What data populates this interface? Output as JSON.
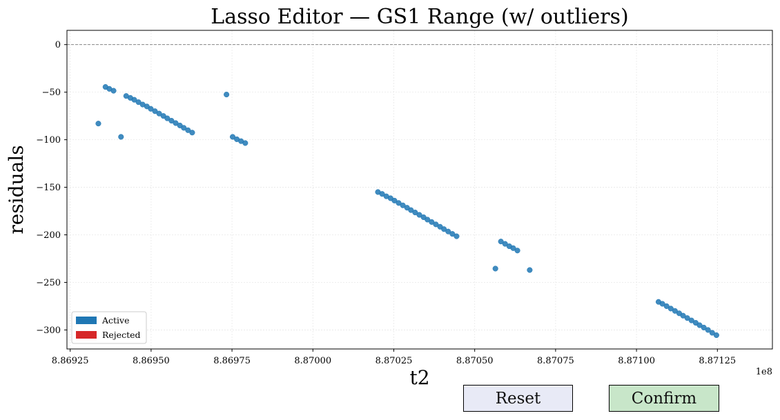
{
  "chart_data": {
    "type": "scatter",
    "title": "Lasso Editor — GS1 Range (w/ outliers)",
    "xlabel": "t2",
    "ylabel": "residuals",
    "x_offset_label": "1e8",
    "xlim": [
      886924000,
      887142000
    ],
    "ylim": [
      -320,
      15
    ],
    "xticks": [
      886925000,
      886950000,
      886975000,
      887000000,
      887025000,
      887050000,
      887075000,
      887100000,
      887125000
    ],
    "xtick_labels": [
      "8.86925",
      "8.86950",
      "8.86975",
      "8.87000",
      "8.87025",
      "8.87050",
      "8.87075",
      "8.87100",
      "8.87125"
    ],
    "yticks": [
      0,
      -50,
      -100,
      -150,
      -200,
      -250,
      -300
    ],
    "ytick_labels": [
      "0",
      "−50",
      "−100",
      "−150",
      "−200",
      "−250",
      "−300"
    ],
    "reference_line": 0,
    "grid": true,
    "legend": {
      "position": "lower-left",
      "entries": [
        {
          "name": "Active",
          "color": "#1f77b4"
        },
        {
          "name": "Rejected",
          "color": "#d62728"
        }
      ]
    },
    "series": [
      {
        "name": "Active",
        "color": "#1f77b4",
        "points": [
          [
            886933700,
            -83
          ],
          [
            886935900,
            -44.5
          ],
          [
            886937100,
            -46.5
          ],
          [
            886938400,
            -48.5
          ],
          [
            886940700,
            -97
          ],
          [
            886942300,
            -54
          ],
          [
            886943600,
            -56
          ],
          [
            886944800,
            -58
          ],
          [
            886946100,
            -60.5
          ],
          [
            886947400,
            -63
          ],
          [
            886948700,
            -65
          ],
          [
            886949900,
            -67.5
          ],
          [
            886951200,
            -70
          ],
          [
            886952500,
            -72.5
          ],
          [
            886953800,
            -75
          ],
          [
            886955000,
            -77.5
          ],
          [
            886956300,
            -80
          ],
          [
            886957600,
            -82.5
          ],
          [
            886958900,
            -85
          ],
          [
            886960100,
            -87.5
          ],
          [
            886961400,
            -90
          ],
          [
            886962700,
            -92.5
          ],
          [
            886973300,
            -52.5
          ],
          [
            886975200,
            -97
          ],
          [
            886976500,
            -99.5
          ],
          [
            886977800,
            -101.5
          ],
          [
            886979100,
            -103.5
          ],
          [
            887020100,
            -155
          ],
          [
            887021400,
            -157
          ],
          [
            887022700,
            -159.5
          ],
          [
            887024000,
            -161.5
          ],
          [
            887025200,
            -164
          ],
          [
            887026500,
            -166.5
          ],
          [
            887027800,
            -169
          ],
          [
            887029100,
            -171.5
          ],
          [
            887030300,
            -174
          ],
          [
            887031600,
            -176.5
          ],
          [
            887032900,
            -179
          ],
          [
            887034200,
            -181.5
          ],
          [
            887035400,
            -184
          ],
          [
            887036700,
            -186.5
          ],
          [
            887038000,
            -189
          ],
          [
            887039300,
            -191.5
          ],
          [
            887040500,
            -194
          ],
          [
            887041800,
            -196.5
          ],
          [
            887043100,
            -199
          ],
          [
            887044400,
            -201.5
          ],
          [
            887056400,
            -235.5
          ],
          [
            887058100,
            -207
          ],
          [
            887059400,
            -209.5
          ],
          [
            887060700,
            -212
          ],
          [
            887061900,
            -214
          ],
          [
            887063200,
            -216.5
          ],
          [
            887067000,
            -237
          ],
          [
            887106800,
            -270.5
          ],
          [
            887108000,
            -272.5
          ],
          [
            887109300,
            -275
          ],
          [
            887110600,
            -277.5
          ],
          [
            887111900,
            -280
          ],
          [
            887113200,
            -282.5
          ],
          [
            887114400,
            -285
          ],
          [
            887115700,
            -287.5
          ],
          [
            887117000,
            -290
          ],
          [
            887118300,
            -292.5
          ],
          [
            887119500,
            -295
          ],
          [
            887120800,
            -297.5
          ],
          [
            887122100,
            -300
          ],
          [
            887123400,
            -303
          ],
          [
            887124700,
            -305.5
          ]
        ]
      },
      {
        "name": "Rejected",
        "color": "#d62728",
        "points": []
      }
    ]
  },
  "buttons": {
    "reset_label": "Reset",
    "confirm_label": "Confirm"
  }
}
